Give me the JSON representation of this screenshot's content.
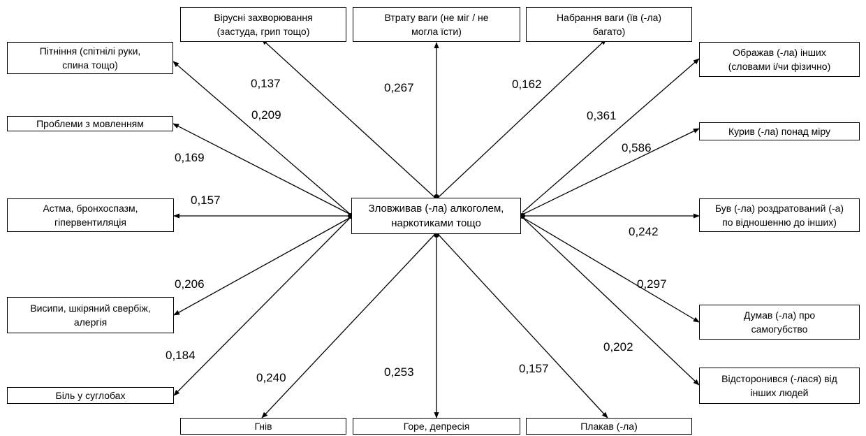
{
  "center": {
    "label": "Зловживав (-ла) алкоголем,\nнаркотиками тощо"
  },
  "outcomes": {
    "sweating": {
      "label": "Пітніння (спітнілі руки,\nспина тощо)",
      "coef": "0,209"
    },
    "viral": {
      "label": "Вірусні захворювання\n(застуда, грип тощо)",
      "coef": "0,137"
    },
    "weight_loss": {
      "label": "Втрату ваги (не міг / не\nмогла їсти)",
      "coef": "0,267"
    },
    "weight_gain": {
      "label": "Набрання ваги (їв (-ла)\nбагато)",
      "coef": "0,162"
    },
    "insulted": {
      "label": "Ображав (-ла) інших\n(словами і/чи фізично)",
      "coef": "0,361"
    },
    "speech": {
      "label": "Проблеми з мовленням",
      "coef": "0,169"
    },
    "smoked": {
      "label": "Курив (-ла) понад міру",
      "coef": "0,586"
    },
    "asthma": {
      "label": "Астма, бронхоспазм,\nгіпервентиляція",
      "coef": "0,157"
    },
    "irritated": {
      "label": "Був (-ла) роздратований (-а)\nпо відношенню до інших)",
      "coef": "0,242"
    },
    "rash": {
      "label": "Висипи, шкіряний свербіж,\nалергія",
      "coef": "0,206"
    },
    "suicide": {
      "label": "Думав (-ла) про\nсамогубство",
      "coef": "0,297"
    },
    "joints": {
      "label": "Біль у суглобах",
      "coef": "0,184"
    },
    "withdrew": {
      "label": "Відсторонився (-лася) від\nінших людей",
      "coef": "0,202"
    },
    "anger": {
      "label": "Гнів",
      "coef": "0,240"
    },
    "grief": {
      "label": "Горе, депресія",
      "coef": "0,253"
    },
    "cried": {
      "label": "Плакав (-ла)",
      "coef": "0,157"
    }
  }
}
